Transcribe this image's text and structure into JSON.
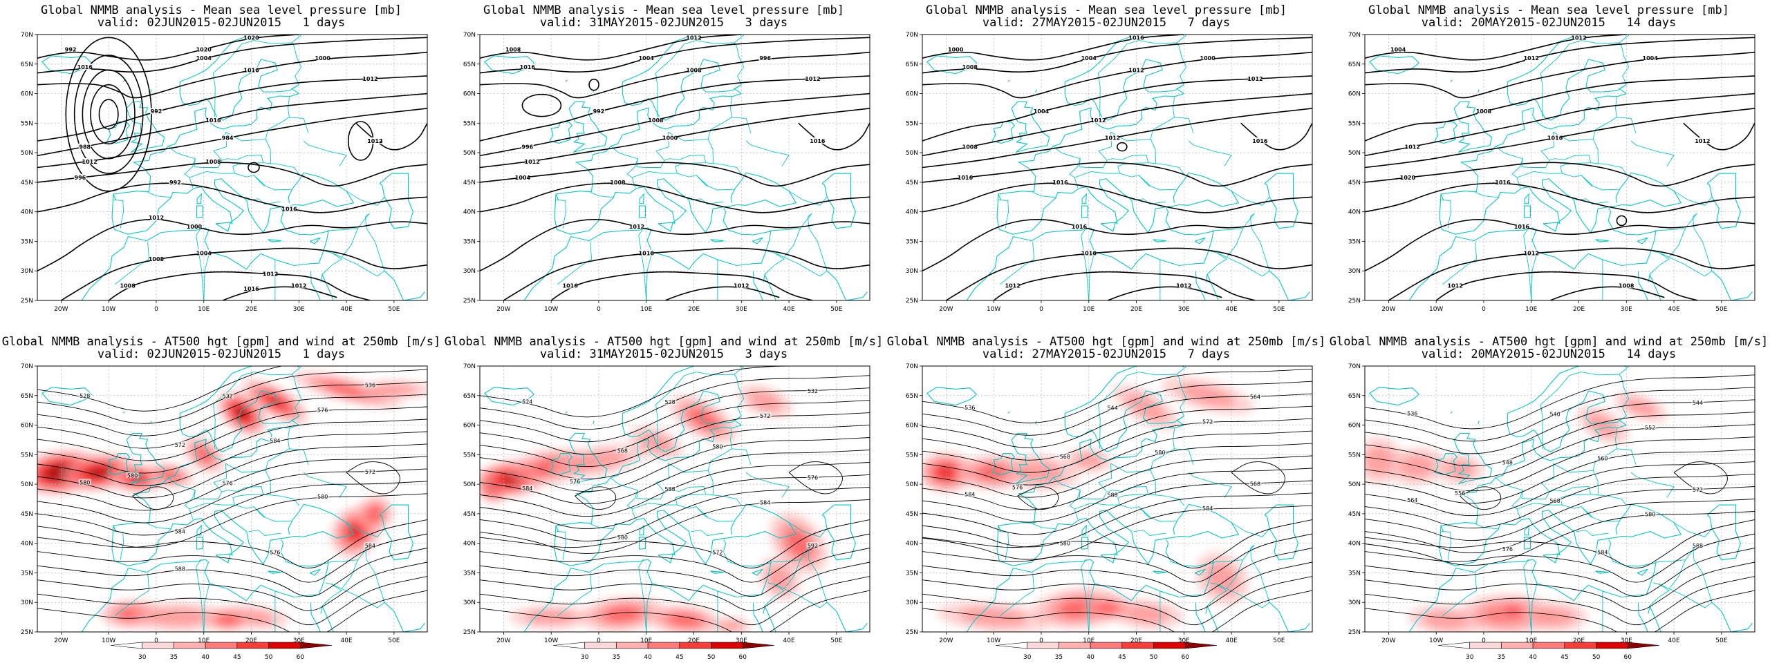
{
  "colors": {
    "coast": "#00c8c8",
    "contour": "#000000",
    "grid": "#b0b0b0",
    "jet": "#ff0000"
  },
  "lat_labels": [
    "70N",
    "65N",
    "60N",
    "55N",
    "50N",
    "45N",
    "40N",
    "35N",
    "30N",
    "25N"
  ],
  "lon_labels": [
    "20W",
    "10W",
    "0",
    "10E",
    "20E",
    "30E",
    "40E",
    "50E"
  ],
  "colorbar": {
    "ticks": [
      "30",
      "35",
      "40",
      "45",
      "50",
      "60"
    ],
    "shades": [
      "#ffffff",
      "#ffd9d9",
      "#ffb0b0",
      "#ff7a7a",
      "#ff3c3c",
      "#e00000",
      "#900000"
    ]
  },
  "panels": [
    {
      "id": "mslp-1d",
      "row": 0,
      "col": 0,
      "title": "Global NMMB analysis - Mean sea level pressure [mb]",
      "valid": "valid: 02JUN2015-02JUN2015   1 days",
      "labels": [
        "992",
        "1004",
        "1000",
        "992",
        "988",
        "984",
        "996",
        "992",
        "1000",
        "1004",
        "1008",
        "1012",
        "1016",
        "1020",
        "1016",
        "1016",
        "1012",
        "1016",
        "1012",
        "1008",
        "1016",
        "1012",
        "1008",
        "1012",
        "1016",
        "1012",
        "1020"
      ]
    },
    {
      "id": "mslp-3d",
      "row": 0,
      "col": 1,
      "title": "Global NMMB analysis - Mean sea level pressure [mb]",
      "valid": "valid: 31MAY2015-02JUN2015   3 days",
      "labels": [
        "1008",
        "1004",
        "996",
        "992",
        "996",
        "1000",
        "1004",
        "1008",
        "1012",
        "1016",
        "1016",
        "1012",
        "1016",
        "1012",
        "1016",
        "1008",
        "1012",
        "1008",
        "1012"
      ]
    },
    {
      "id": "mslp-7d",
      "row": 0,
      "col": 2,
      "title": "Global NMMB analysis - Mean sea level pressure [mb]",
      "valid": "valid: 27MAY2015-02JUN2015   7 days",
      "labels": [
        "1000",
        "1004",
        "1000",
        "1004",
        "1008",
        "1012",
        "1016",
        "1016",
        "1016",
        "1016",
        "1012",
        "1012",
        "1016",
        "1016",
        "1008",
        "1012",
        "1012",
        "1012"
      ]
    },
    {
      "id": "mslp-14d",
      "row": 0,
      "col": 3,
      "title": "Global NMMB analysis - Mean sea level pressure [mb]",
      "valid": "valid: 20MAY2015-02JUN2015   14 days",
      "labels": [
        "1004",
        "1012",
        "1004",
        "1008",
        "1012",
        "1016",
        "1020",
        "1016",
        "1016",
        "1012",
        "1012",
        "1008",
        "1012",
        "1012"
      ]
    },
    {
      "id": "z500-1d",
      "row": 1,
      "col": 0,
      "title": "Global NMMB analysis - AT500 hgt [gpm] and wind at 250mb [m/s]",
      "valid": "valid: 02JUN2015-02JUN2015   1 days",
      "labels": [
        "528",
        "532",
        "536",
        "572",
        "576",
        "580",
        "584",
        "580",
        "576",
        "572",
        "584",
        "580",
        "576",
        "584",
        "588"
      ]
    },
    {
      "id": "z500-3d",
      "row": 1,
      "col": 1,
      "title": "Global NMMB analysis - AT500 hgt [gpm] and wind at 250mb [m/s]",
      "valid": "valid: 31MAY2015-02JUN2015   3 days",
      "labels": [
        "524",
        "528",
        "532",
        "568",
        "572",
        "576",
        "580",
        "584",
        "588",
        "576",
        "580",
        "584",
        "572",
        "592"
      ]
    },
    {
      "id": "z500-7d",
      "row": 1,
      "col": 2,
      "title": "Global NMMB analysis - AT500 hgt [gpm] and wind at 250mb [m/s]",
      "valid": "valid: 27MAY2015-02JUN2015   7 days",
      "labels": [
        "536",
        "544",
        "564",
        "568",
        "572",
        "576",
        "580",
        "584",
        "588",
        "568",
        "580",
        "584"
      ]
    },
    {
      "id": "z500-14d",
      "row": 1,
      "col": 3,
      "title": "Global NMMB analysis - AT500 hgt [gpm] and wind at 250mb [m/s]",
      "valid": "valid: 20MAY2015-02JUN2015   14 days",
      "labels": [
        "536",
        "540",
        "544",
        "548",
        "552",
        "556",
        "560",
        "564",
        "568",
        "572",
        "576",
        "580",
        "584",
        "588"
      ]
    }
  ]
}
